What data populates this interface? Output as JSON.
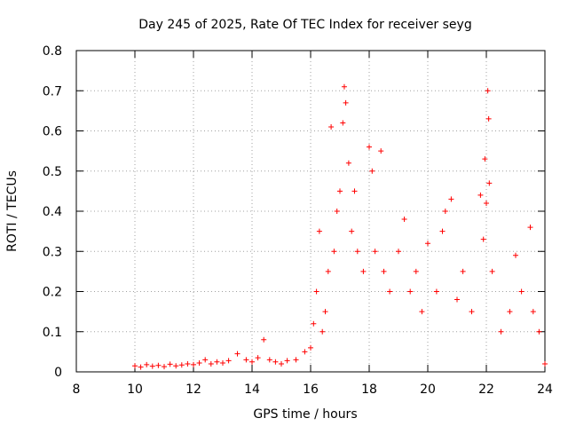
{
  "chart_data": {
    "type": "scatter",
    "title": "Day 245 of 2025, Rate Of TEC Index for receiver seyg",
    "xlabel": "GPS time / hours",
    "ylabel": "ROTI / TECUs",
    "xlim": [
      8,
      24
    ],
    "ylim": [
      0,
      0.8
    ],
    "x_ticks": [
      8,
      10,
      12,
      14,
      16,
      18,
      20,
      22,
      24
    ],
    "x_tick_labels": [
      "8",
      "10",
      "12",
      "14",
      "16",
      "18",
      "20",
      "22",
      "24"
    ],
    "y_ticks": [
      0,
      0.1,
      0.2,
      0.3,
      0.4,
      0.5,
      0.6,
      0.7,
      0.8
    ],
    "y_tick_labels": [
      "0",
      "0.1",
      "0.2",
      "0.3",
      "0.4",
      "0.5",
      "0.6",
      "0.7",
      "0.8"
    ],
    "grid": true,
    "marker": "+",
    "color": "#ff0000",
    "series": [
      {
        "name": "ROTI",
        "points": [
          [
            10.0,
            0.015
          ],
          [
            10.2,
            0.012
          ],
          [
            10.4,
            0.018
          ],
          [
            10.6,
            0.014
          ],
          [
            10.8,
            0.016
          ],
          [
            11.0,
            0.013
          ],
          [
            11.2,
            0.019
          ],
          [
            11.4,
            0.015
          ],
          [
            11.6,
            0.017
          ],
          [
            11.8,
            0.02
          ],
          [
            12.0,
            0.018
          ],
          [
            12.2,
            0.022
          ],
          [
            12.4,
            0.03
          ],
          [
            12.6,
            0.02
          ],
          [
            12.8,
            0.025
          ],
          [
            13.0,
            0.022
          ],
          [
            13.2,
            0.028
          ],
          [
            13.5,
            0.045
          ],
          [
            13.8,
            0.03
          ],
          [
            14.0,
            0.025
          ],
          [
            14.2,
            0.035
          ],
          [
            14.4,
            0.08
          ],
          [
            14.6,
            0.03
          ],
          [
            14.8,
            0.025
          ],
          [
            15.0,
            0.02
          ],
          [
            15.2,
            0.028
          ],
          [
            15.5,
            0.03
          ],
          [
            15.8,
            0.05
          ],
          [
            16.0,
            0.06
          ],
          [
            16.1,
            0.12
          ],
          [
            16.2,
            0.2
          ],
          [
            16.3,
            0.35
          ],
          [
            16.4,
            0.1
          ],
          [
            16.5,
            0.15
          ],
          [
            16.6,
            0.25
          ],
          [
            16.7,
            0.61
          ],
          [
            16.8,
            0.3
          ],
          [
            16.9,
            0.4
          ],
          [
            17.0,
            0.45
          ],
          [
            17.1,
            0.62
          ],
          [
            17.15,
            0.71
          ],
          [
            17.2,
            0.67
          ],
          [
            17.3,
            0.52
          ],
          [
            17.4,
            0.35
          ],
          [
            17.5,
            0.45
          ],
          [
            17.6,
            0.3
          ],
          [
            17.8,
            0.25
          ],
          [
            18.0,
            0.56
          ],
          [
            18.1,
            0.5
          ],
          [
            18.2,
            0.3
          ],
          [
            18.4,
            0.55
          ],
          [
            18.5,
            0.25
          ],
          [
            18.7,
            0.2
          ],
          [
            19.0,
            0.3
          ],
          [
            19.2,
            0.38
          ],
          [
            19.4,
            0.2
          ],
          [
            19.6,
            0.25
          ],
          [
            19.8,
            0.15
          ],
          [
            20.0,
            0.32
          ],
          [
            20.3,
            0.2
          ],
          [
            20.5,
            0.35
          ],
          [
            20.6,
            0.4
          ],
          [
            20.8,
            0.43
          ],
          [
            21.0,
            0.18
          ],
          [
            21.2,
            0.25
          ],
          [
            21.5,
            0.15
          ],
          [
            21.8,
            0.44
          ],
          [
            21.9,
            0.33
          ],
          [
            21.95,
            0.53
          ],
          [
            22.0,
            0.42
          ],
          [
            22.05,
            0.7
          ],
          [
            22.08,
            0.63
          ],
          [
            22.1,
            0.47
          ],
          [
            22.2,
            0.25
          ],
          [
            22.5,
            0.1
          ],
          [
            22.8,
            0.15
          ],
          [
            23.0,
            0.29
          ],
          [
            23.2,
            0.2
          ],
          [
            23.5,
            0.36
          ],
          [
            23.6,
            0.15
          ],
          [
            23.8,
            0.1
          ],
          [
            24.0,
            0.02
          ]
        ]
      }
    ]
  }
}
